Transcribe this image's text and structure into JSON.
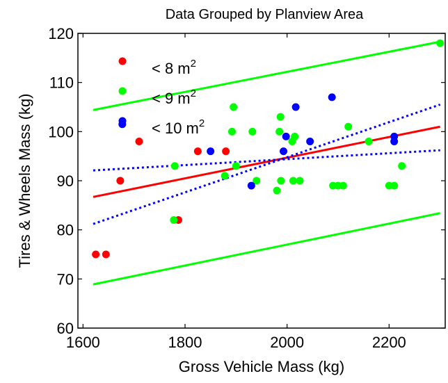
{
  "chart_data": {
    "type": "scatter",
    "title": "Data Grouped by Planview Area",
    "xlabel": "Gross Vehicle Mass (kg)",
    "ylabel": "Tires & Wheels Mass (kg)",
    "xlim": [
      1590,
      2310
    ],
    "ylim": [
      60,
      120
    ],
    "xticks": [
      1600,
      1800,
      2000,
      2200
    ],
    "yticks": [
      60,
      70,
      80,
      90,
      100,
      110,
      120
    ],
    "grid": false,
    "legend_position": "top-left",
    "series": [
      {
        "name": "< 8 m",
        "superscript": "2",
        "color": "#ff0000",
        "points": [
          [
            1625,
            75
          ],
          [
            1645,
            75
          ],
          [
            1673,
            90
          ],
          [
            1710,
            98
          ],
          [
            1787,
            82
          ],
          [
            1825,
            96
          ],
          [
            1880,
            96
          ]
        ]
      },
      {
        "name": "< 9 m",
        "superscript": "2",
        "color": "#00ff00",
        "points": [
          [
            1778,
            82
          ],
          [
            1780,
            93
          ],
          [
            1878,
            91
          ],
          [
            1892,
            100
          ],
          [
            1895,
            105
          ],
          [
            1900,
            93
          ],
          [
            1932,
            100
          ],
          [
            1940,
            90
          ],
          [
            1980,
            88
          ],
          [
            1985,
            100
          ],
          [
            1987,
            103
          ],
          [
            1988,
            90
          ],
          [
            2010,
            98
          ],
          [
            2012,
            90
          ],
          [
            2015,
            99
          ],
          [
            2025,
            90
          ],
          [
            2090,
            89
          ],
          [
            2100,
            89
          ],
          [
            2110,
            89
          ],
          [
            2120,
            101
          ],
          [
            2160,
            98
          ],
          [
            2200,
            89
          ],
          [
            2210,
            89
          ],
          [
            2225,
            93
          ],
          [
            2300,
            118
          ]
        ]
      },
      {
        "name": "< 10 m",
        "superscript": "2",
        "color": "#0000ff",
        "points": [
          [
            1677,
            101.5
          ],
          [
            1850,
            96
          ],
          [
            1930,
            89
          ],
          [
            1993,
            96
          ],
          [
            1998,
            99
          ],
          [
            2017,
            105
          ],
          [
            2045,
            98
          ],
          [
            2088,
            107
          ],
          [
            2210,
            99
          ],
          [
            2210,
            98
          ]
        ]
      }
    ],
    "lines": [
      {
        "series": "< 8 m",
        "style": "solid",
        "color": "#ff0000",
        "x": [
          1620,
          2300
        ],
        "y": [
          86.7,
          101
        ]
      },
      {
        "series": "< 9 m",
        "style": "solid",
        "color": "#00ff00",
        "x": [
          1620,
          2300
        ],
        "y": [
          104.4,
          118.3
        ]
      },
      {
        "series": "< 9 m",
        "style": "solid",
        "color": "#00ff00",
        "x": [
          1620,
          2300
        ],
        "y": [
          68.9,
          83.4
        ]
      },
      {
        "series": "< 10 m",
        "style": "dotted",
        "color": "#0000ff",
        "x": [
          1620,
          2300
        ],
        "y": [
          81.2,
          105.5
        ]
      },
      {
        "series": "< 10 m",
        "style": "dotted",
        "color": "#0000ff",
        "x": [
          1620,
          2300
        ],
        "y": [
          92.1,
          96.2
        ]
      }
    ]
  }
}
